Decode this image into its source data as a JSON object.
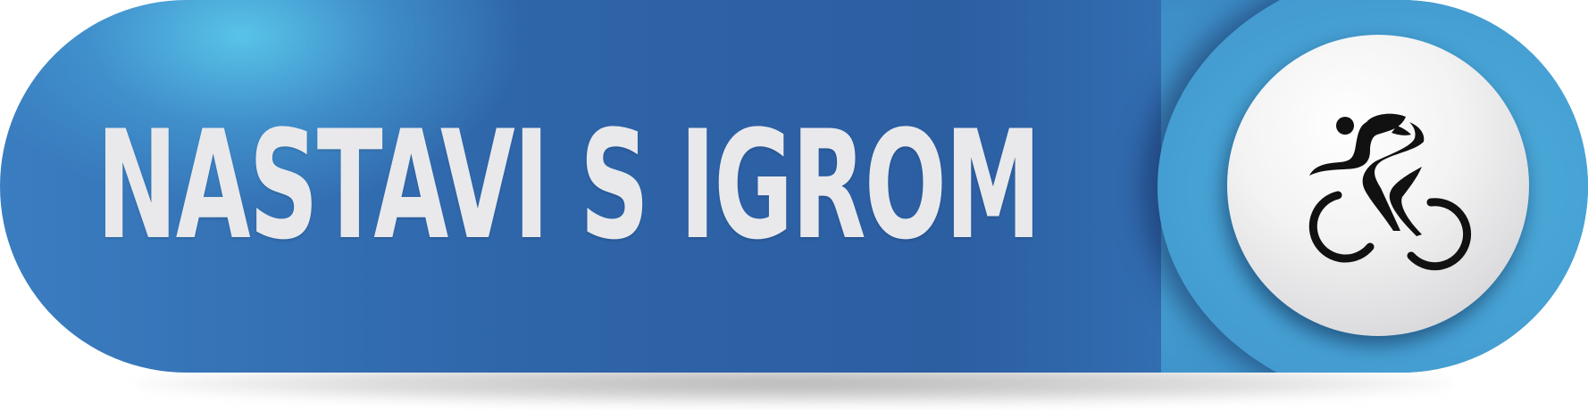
{
  "button": {
    "label": "NASTAVI S IGROM",
    "icon": "cyclist-icon",
    "colors": {
      "body_blue": "#2e64a8",
      "highlight_cyan": "#4aa6d6",
      "text": "#e9e9ec",
      "disc": "#f3f3f4",
      "icon": "#111111"
    }
  }
}
